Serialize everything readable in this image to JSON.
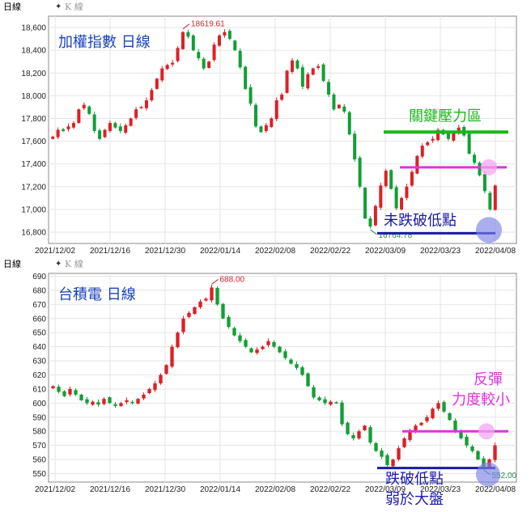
{
  "chart_data": [
    {
      "type": "candlestick",
      "panel_title": "日線",
      "toolbar_label": "K 線",
      "title": "加權指數 日線",
      "yticks": [
        "18,600",
        "18,400",
        "18,200",
        "18,000",
        "17,800",
        "17,600",
        "17,400",
        "17,200",
        "17,000",
        "16,800"
      ],
      "ylim": [
        16700,
        18700
      ],
      "xticks": [
        "2021/12/02",
        "2021/12/16",
        "2021/12/30",
        "2022/01/14",
        "2022/02/08",
        "2022/02/22",
        "2022/03/09",
        "2022/03/23",
        "2022/04/08"
      ],
      "high_label": "18619.61",
      "low_label": "16764.78",
      "annotations": [
        {
          "text": "關鍵壓力區",
          "color": "#18b818",
          "level": 17680
        },
        {
          "text": "",
          "color": "#dd33dd",
          "level": 17370
        },
        {
          "text": "未跌破低點",
          "color": "#1a1aa6",
          "level": 16790
        }
      ],
      "closes": [
        17640,
        17700,
        17690,
        17730,
        17760,
        17880,
        17920,
        17840,
        17690,
        17620,
        17700,
        17760,
        17720,
        17690,
        17740,
        17800,
        17880,
        17900,
        17960,
        18050,
        18150,
        18240,
        18270,
        18290,
        18420,
        18560,
        18520,
        18400,
        18330,
        18240,
        18300,
        18450,
        18530,
        18560,
        18500,
        18400,
        18250,
        18060,
        17930,
        17730,
        17680,
        17740,
        17800,
        17960,
        18010,
        18220,
        18310,
        18240,
        18080,
        18190,
        18240,
        18260,
        18130,
        18010,
        17880,
        17920,
        17860,
        17660,
        17440,
        17200,
        16920,
        16850,
        17030,
        17210,
        17340,
        17180,
        17010,
        17100,
        17200,
        17330,
        17470,
        17560,
        17590,
        17620,
        17700,
        17660,
        17620,
        17680,
        17720,
        17650,
        17490,
        17410,
        17300,
        17160,
        17000,
        17210
      ],
      "color_up": "#dd1f26",
      "color_down": "#129e36"
    },
    {
      "type": "candlestick",
      "panel_title": "日線",
      "toolbar_label": "K 線",
      "title": "台積電 日線",
      "yticks": [
        "690",
        "680",
        "670",
        "660",
        "650",
        "640",
        "630",
        "620",
        "610",
        "600",
        "590",
        "580",
        "570",
        "560",
        "550"
      ],
      "ylim": [
        544,
        692
      ],
      "xticks": [
        "2021/12/02",
        "2021/12/16",
        "2021/12/30",
        "2022/01/14",
        "2022/02/08",
        "2022/02/22",
        "2022/03/09",
        "2022/03/23",
        "2022/04/08"
      ],
      "high_label": "688.00",
      "low_label": "552.00",
      "annotations": [
        {
          "text": "反彈",
          "color": "#dd33dd",
          "level": 0
        },
        {
          "text": "力度較小",
          "color": "#dd33dd",
          "level": 0
        },
        {
          "text": "",
          "color": "#dd33dd",
          "level": 580
        },
        {
          "text": "跌破低點",
          "color": "#1a1aa6",
          "level": 554
        },
        {
          "text": "弱於大盤",
          "color": "#1a1aa6",
          "level": 0
        }
      ],
      "closes": [
        612,
        608,
        605,
        610,
        606,
        602,
        600,
        601,
        599,
        603,
        600,
        598,
        600,
        602,
        600,
        603,
        606,
        610,
        614,
        620,
        627,
        640,
        650,
        660,
        664,
        668,
        672,
        674,
        682,
        670,
        660,
        654,
        648,
        644,
        640,
        636,
        638,
        640,
        644,
        640,
        636,
        632,
        628,
        625,
        620,
        612,
        604,
        602,
        600,
        601,
        600,
        585,
        578,
        575,
        580,
        584,
        572,
        566,
        562,
        556,
        560,
        568,
        575,
        580,
        584,
        586,
        590,
        596,
        600,
        594,
        588,
        580,
        575,
        570,
        566,
        560,
        555,
        560,
        570
      ],
      "color_up": "#dd1f26",
      "color_down": "#129e36"
    }
  ]
}
